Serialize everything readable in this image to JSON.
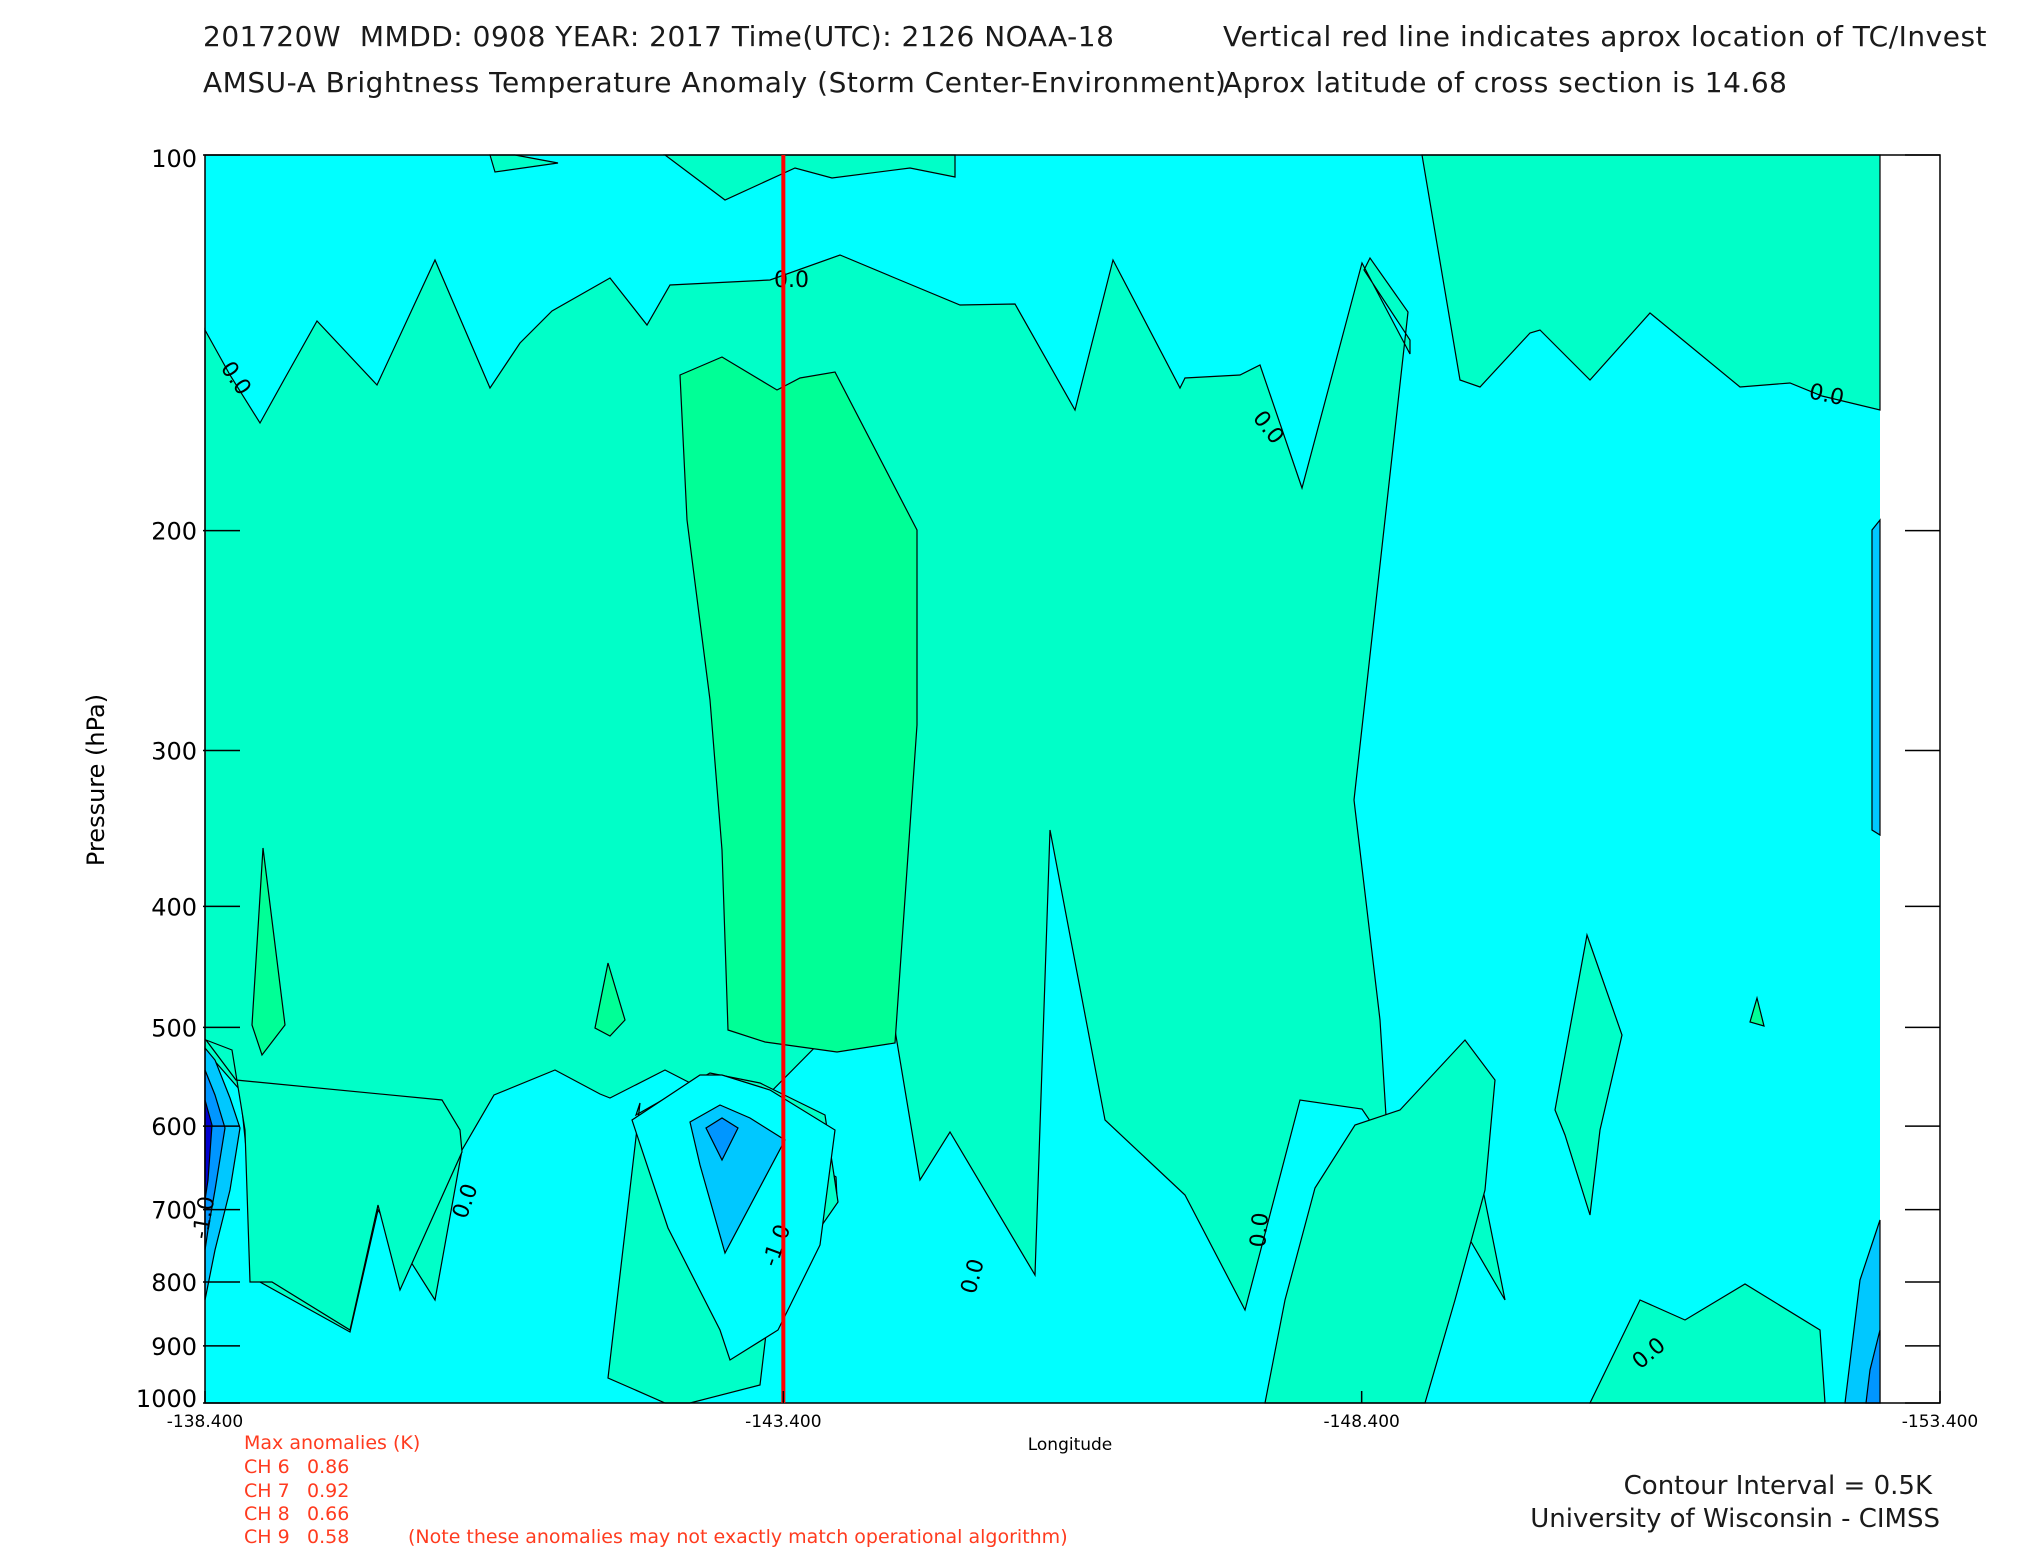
{
  "header": {
    "line1_left": "201720W  MMDD: 0908 YEAR: 2017 Time(UTC): 2126 NOAA-18",
    "line1_right": "Vertical red line indicates aprox location of TC/Invest",
    "line2_left": "AMSU-A Brightness Temperature Anomaly (Storm Center-Environment)",
    "line2_right": "Aprox latitude of cross section is 14.68"
  },
  "colors": {
    "level_minus_0_5": "#00ffff",
    "level_0_0": "#00ffc8",
    "level_0_5": "#00ff96",
    "level_minus_1_0": "#00c8ff",
    "level_minus_1_5": "#0096ff",
    "level_minus_2_0": "#0000d0",
    "storm_line": "#ff0000",
    "annotation_text": "#ff3b1f"
  },
  "chart_data": {
    "type": "contour",
    "xlabel": "Longitude",
    "ylabel": "Pressure (hPa)",
    "x_ticks": [
      "-138.400",
      "-143.400",
      "-148.400",
      "-153.400"
    ],
    "x_range": [
      -138.4,
      -153.4
    ],
    "y_ticks": [
      "100",
      "200",
      "300",
      "400",
      "500",
      "600",
      "700",
      "800",
      "900",
      "1000"
    ],
    "y_range": [
      100,
      1000
    ],
    "y_scale": "log",
    "storm_longitude": -143.4,
    "contour_interval_K": 0.5,
    "contour_labels": [
      "0.0",
      "-1.0"
    ],
    "contour_interval_text": "Contour Interval = 0.5K",
    "credit": "University of Wisconsin - CIMSS",
    "max_anomalies": {
      "title": "Max anomalies (K)",
      "channels": [
        {
          "label": "CH 6",
          "value": "0.86"
        },
        {
          "label": "CH 7",
          "value": "0.92"
        },
        {
          "label": "CH 8",
          "value": "0.66"
        },
        {
          "label": "CH 9",
          "value": "0.58"
        }
      ],
      "note": "(Note these anomalies may not exactly match operational algorithm)"
    }
  }
}
